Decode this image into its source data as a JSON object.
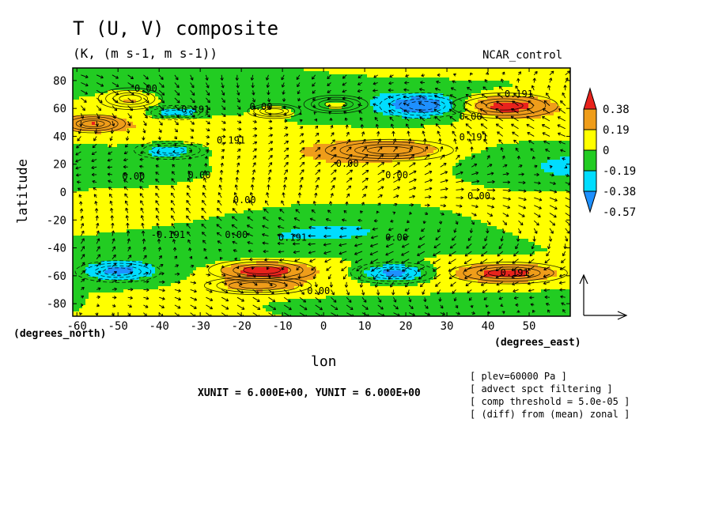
{
  "chart_data": {
    "type": "heatmap",
    "title": "T (U, V) composite",
    "subtitle": "(K, (m s-1, m s-1))",
    "model_label": "NCAR_control",
    "xlabel": "lon",
    "ylabel": "latitude",
    "x_units_label": "(degrees_east)",
    "y_units_label": "(degrees_north)",
    "xlim": [
      -61,
      60
    ],
    "ylim": [
      -89,
      89
    ],
    "x_ticks": [
      "-60",
      "-50",
      "-40",
      "-30",
      "-20",
      "-10",
      "0",
      "10",
      "20",
      "30",
      "40",
      "50"
    ],
    "y_ticks": [
      "80",
      "60",
      "40",
      "20",
      "0",
      "-20",
      "-40",
      "-60",
      "-80"
    ],
    "colorbar": {
      "labels": [
        "0.38",
        "0.19",
        "0",
        "-0.19",
        "-0.38",
        "-0.57"
      ],
      "colors": [
        "#e8231c",
        "#ef9d1a",
        "#ffff00",
        "#22cc22",
        "#00ddff",
        "#1e90ff"
      ]
    },
    "contour_labels": [
      "0.00",
      "0.191",
      "-0.191"
    ],
    "colors": {
      "red": "#e8231c",
      "orange": "#ef9d1a",
      "yellow": "#ffff00",
      "green": "#22cc22",
      "cyan": "#00ddff",
      "blue": "#1e90ff"
    },
    "features": [
      {
        "kind": "warm",
        "lon": 44,
        "lat": 62,
        "rx": 10,
        "ry": 7,
        "level": 0.4
      },
      {
        "kind": "warm",
        "lon": -15,
        "lat": -56,
        "rx": 10,
        "ry": 6,
        "level": 0.4
      },
      {
        "kind": "warm",
        "lon": 45,
        "lat": -58,
        "rx": 11,
        "ry": 6,
        "level": 0.35
      },
      {
        "kind": "warm",
        "lon": -47,
        "lat": 67,
        "rx": 6,
        "ry": 6,
        "level": 0.2
      },
      {
        "kind": "warm",
        "lon": -56,
        "lat": 49,
        "rx": 6,
        "ry": 5,
        "level": 0.2
      },
      {
        "kind": "warm",
        "lon": -12,
        "lat": 58,
        "rx": 5,
        "ry": 4,
        "level": 0.2
      },
      {
        "kind": "warm",
        "lon": 3,
        "lat": 63,
        "rx": 6,
        "ry": 5,
        "level": 0.2
      },
      {
        "kind": "warm",
        "lon": 16,
        "lat": 30,
        "rx": 12,
        "ry": 6,
        "level": 0.2
      },
      {
        "kind": "warm",
        "lon": -16,
        "lat": -67,
        "rx": 10,
        "ry": 5,
        "level": 0.2
      },
      {
        "kind": "cold",
        "lon": 24,
        "lat": 62,
        "rx": 8,
        "ry": 7,
        "level": -0.45
      },
      {
        "kind": "cold",
        "lon": -36,
        "lat": 57,
        "rx": 6,
        "ry": 4,
        "level": -0.35
      },
      {
        "kind": "cold",
        "lon": -37,
        "lat": 30,
        "rx": 7,
        "ry": 5,
        "level": -0.3
      },
      {
        "kind": "cold",
        "lon": -50,
        "lat": -57,
        "rx": 8,
        "ry": 6,
        "level": -0.4
      },
      {
        "kind": "cold",
        "lon": 17,
        "lat": -58,
        "rx": 8,
        "ry": 6,
        "level": -0.55
      }
    ],
    "wind_scale": {
      "xunit": "6.000E+00",
      "yunit": "6.000E+00"
    },
    "notes": [
      "[ plev=60000 Pa ]",
      "[ advect spct filtering ]",
      "[ comp threshold = 5.0e-05 ]",
      "[ (diff) from (mean) zonal ]"
    ]
  },
  "units_line": "XUNIT = 6.000E+00, YUNIT = 6.000E+00"
}
